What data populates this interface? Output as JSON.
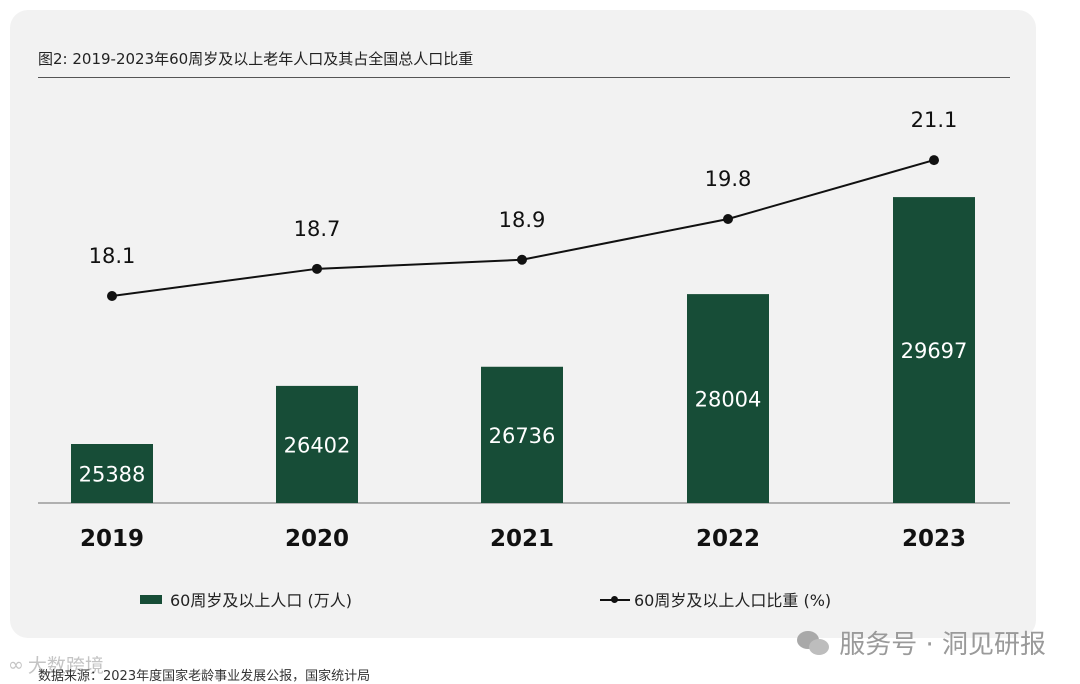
{
  "title": "图2: 2019-2023年60周岁及以上老年人口及其占全国总人口比重",
  "colors": {
    "bar": "#174d37",
    "line": "#111111",
    "background": "#f2f2f2"
  },
  "chart_data": {
    "type": "bar+line",
    "categories": [
      "2019",
      "2020",
      "2021",
      "2022",
      "2023"
    ],
    "series": [
      {
        "name": "60周岁及以上人口 (万人)",
        "type": "bar",
        "values": [
          25388,
          26402,
          26736,
          28004,
          29697
        ]
      },
      {
        "name": "60周岁及以上人口比重 (%)",
        "type": "line",
        "values": [
          18.1,
          18.7,
          18.9,
          19.8,
          21.1
        ]
      }
    ],
    "legend_position": "bottom",
    "grid": false
  },
  "watermark": {
    "text": "服务号 · 洞见研报",
    "icon": "wechat-icon"
  },
  "watermark2": {
    "text": "大数跨境",
    "icon": "brand-logo-icon"
  },
  "source": "数据来源：2023年度国家老龄事业发展公报，国家统计局"
}
